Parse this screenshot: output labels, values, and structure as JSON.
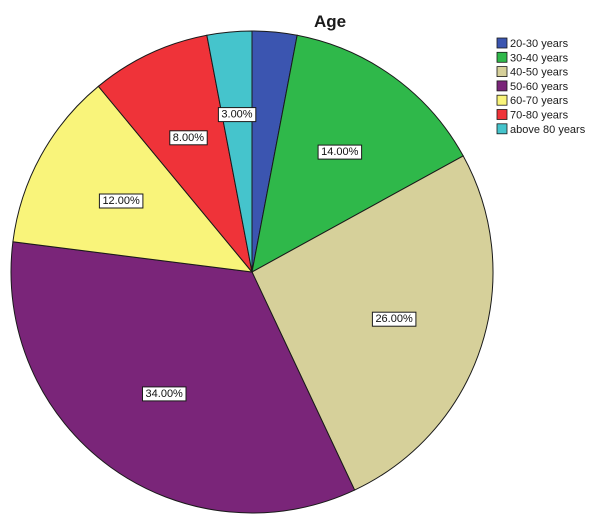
{
  "chart_data": {
    "type": "pie",
    "title": "Age",
    "unit_suffix": "%",
    "legend_position": "top-right",
    "start_angle_deg": 0,
    "direction": "clockwise",
    "slices": [
      {
        "label": "20-30 years",
        "value": 3.0,
        "display": "",
        "color": "#3b55b0"
      },
      {
        "label": "30-40 years",
        "value": 14.0,
        "display": "14.00%",
        "color": "#2fb84a"
      },
      {
        "label": "40-50 years",
        "value": 26.0,
        "display": "26.00%",
        "color": "#d6d09a"
      },
      {
        "label": "50-60 years",
        "value": 34.0,
        "display": "34.00%",
        "color": "#7a2579"
      },
      {
        "label": "60-70 years",
        "value": 12.0,
        "display": "12.00%",
        "color": "#f9f47a"
      },
      {
        "label": "70-80 years",
        "value": 8.0,
        "display": "8.00%",
        "color": "#ef3339"
      },
      {
        "label": "above 80 years",
        "value": 3.0,
        "display": "3.00%",
        "color": "#45c4cc"
      }
    ]
  }
}
